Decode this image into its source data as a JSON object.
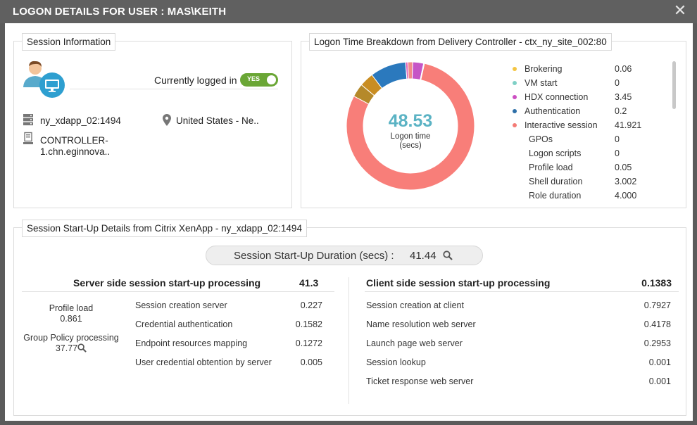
{
  "window": {
    "title": "LOGON DETAILS FOR USER : MAS\\KEITH",
    "close_glyph": "✕"
  },
  "session_info": {
    "heading": "Session Information",
    "status_label": "Currently logged in",
    "status_toggle": "YES",
    "server": "ny_xdapp_02:1494",
    "location": "United States - Ne..",
    "controller_line1": "CONTROLLER-",
    "controller_line2": "1.chn.eginnova..",
    "icons": [
      "user-monitor-icon",
      "server-icon",
      "location-pin-icon",
      "computer-icon"
    ]
  },
  "logon_breakdown": {
    "heading": "Logon Time Breakdown from Delivery Controller - ctx_ny_site_002:80",
    "center_value": "48.53",
    "center_label_line1": "Logon time",
    "center_label_line2": "(secs)",
    "legend": [
      {
        "name": "Brokering",
        "value": "0.06",
        "color": "#f4c542",
        "dot": true
      },
      {
        "name": "VM start",
        "value": "0",
        "color": "#7fd0c6",
        "dot": true
      },
      {
        "name": "HDX connection",
        "value": "3.45",
        "color": "#cc4fc2",
        "dot": true
      },
      {
        "name": "Authentication",
        "value": "0.2",
        "color": "#2d6fa8",
        "dot": true
      },
      {
        "name": "Interactive session",
        "value": "41.921",
        "color": "#f47b76",
        "dot": true
      },
      {
        "name": "GPOs",
        "value": "0",
        "color": "",
        "dot": false
      },
      {
        "name": "Logon scripts",
        "value": "0",
        "color": "",
        "dot": false
      },
      {
        "name": "Profile load",
        "value": "0.05",
        "color": "",
        "dot": false
      },
      {
        "name": "Shell duration",
        "value": "3.002",
        "color": "",
        "dot": false
      },
      {
        "name": "Role duration",
        "value": "4.000",
        "color": "",
        "dot": false
      }
    ],
    "donut_segments": [
      {
        "value": 41.921,
        "color": "#f87e79"
      },
      {
        "value": 1.8,
        "color": "#b5892a"
      },
      {
        "value": 1.9,
        "color": "#c98d22"
      },
      {
        "value": 4.8,
        "color": "#2b79bd"
      },
      {
        "value": 0.3,
        "color": "#e05fb8"
      },
      {
        "value": 0.65,
        "color": "#f28a8a"
      },
      {
        "value": 1.45,
        "color": "#c655c6"
      },
      {
        "value": 0.1,
        "color": "#4e66c9"
      }
    ]
  },
  "startup": {
    "heading": "Session Start-Up Details from Citrix XenApp - ny_xdapp_02:1494",
    "duration_label": "Session Start-Up Duration (secs) :",
    "duration_value": "41.44",
    "server_side": {
      "title": "Server side session start-up processing",
      "total": "41.3",
      "profile_load_label": "Profile load",
      "profile_load_value": "0.861",
      "group_policy_label": "Group Policy processing",
      "group_policy_value": "37.77",
      "rows": [
        {
          "name": "Session creation server",
          "value": "0.227"
        },
        {
          "name": "Credential authentication",
          "value": "0.1582"
        },
        {
          "name": "Endpoint resources mapping",
          "value": "0.1272"
        },
        {
          "name": "User credential obtention by server",
          "value": "0.005"
        }
      ]
    },
    "client_side": {
      "title": "Client side session start-up processing",
      "total": "0.1383",
      "rows": [
        {
          "name": "Session creation at client",
          "value": "0.7927"
        },
        {
          "name": "Name resolution web server",
          "value": "0.4178"
        },
        {
          "name": "Launch page web server",
          "value": "0.2953"
        },
        {
          "name": "Session lookup",
          "value": "0.001"
        },
        {
          "name": "Ticket response web server",
          "value": "0.001"
        }
      ]
    }
  }
}
